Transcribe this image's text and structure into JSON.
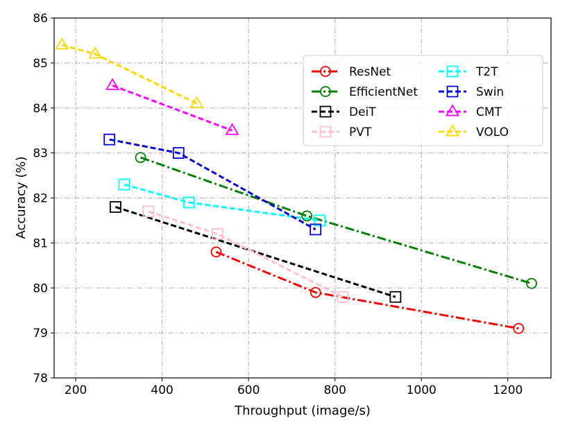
{
  "chart_data": {
    "type": "line",
    "title": "",
    "xlabel": "Throughput (image/s)",
    "ylabel": "Accuracy (%)",
    "xlim": [
      150,
      1300
    ],
    "ylim": [
      78,
      86
    ],
    "x_ticks": [
      200,
      400,
      600,
      800,
      1000,
      1200
    ],
    "y_ticks": [
      78,
      79,
      80,
      81,
      82,
      83,
      84,
      85,
      86
    ],
    "grid": true,
    "legend_position": "upper-right",
    "series": [
      {
        "name": "ResNet",
        "color": "#ff0000",
        "dash": "dashdot",
        "marker": "circle",
        "x": [
          525,
          755,
          1225
        ],
        "y": [
          80.8,
          79.9,
          79.1
        ]
      },
      {
        "name": "EfficientNet",
        "color": "#008000",
        "dash": "dashdot",
        "marker": "circle",
        "x": [
          350,
          735,
          1255
        ],
        "y": [
          82.9,
          81.6,
          80.1
        ]
      },
      {
        "name": "DeiT",
        "color": "#000000",
        "dash": "dashed",
        "marker": "square",
        "x": [
          292,
          940
        ],
        "y": [
          81.8,
          79.8
        ]
      },
      {
        "name": "PVT",
        "color": "#ffc0cb",
        "dash": "dashed",
        "marker": "square",
        "x": [
          368,
          528,
          818
        ],
        "y": [
          81.7,
          81.2,
          79.8
        ]
      },
      {
        "name": "T2T",
        "color": "#00ffff",
        "dash": "dashed",
        "marker": "square",
        "x": [
          312,
          462,
          765
        ],
        "y": [
          82.3,
          81.9,
          81.5
        ]
      },
      {
        "name": "Swin",
        "color": "#0000dd",
        "dash": "dashed",
        "marker": "square",
        "x": [
          278,
          438,
          755
        ],
        "y": [
          83.3,
          83.0,
          81.3
        ]
      },
      {
        "name": "CMT",
        "color": "#ff00ff",
        "dash": "dashed",
        "marker": "triangle",
        "x": [
          285,
          562
        ],
        "y": [
          84.5,
          83.5
        ]
      },
      {
        "name": "VOLO",
        "color": "#ffd700",
        "dash": "dashed",
        "marker": "triangle",
        "x": [
          168,
          245,
          480
        ],
        "y": [
          85.4,
          85.2,
          84.1
        ]
      }
    ]
  }
}
